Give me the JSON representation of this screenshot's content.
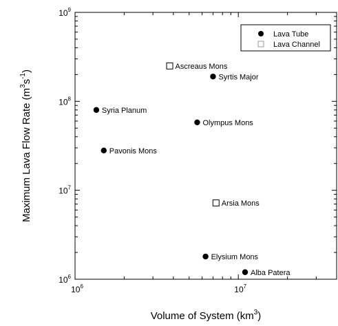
{
  "chart_data": {
    "type": "scatter",
    "title": "",
    "xlabel": {
      "text": "Volume of System (km",
      "sup": "3",
      "after": ")"
    },
    "ylabel": {
      "text": "Maximum Lava Flow Rate (m",
      "sup1": "3",
      "mid": "s",
      "sup2": "-1",
      "after": ")"
    },
    "x_scale": "log",
    "y_scale": "log",
    "xlim": [
      1000000,
      40000000
    ],
    "ylim": [
      1000000,
      1000000000
    ],
    "grid": false,
    "legend_position": "top-right",
    "x_ticks": [
      {
        "value": 1000000,
        "base": "10",
        "exp": "6"
      },
      {
        "value": 10000000,
        "base": "10",
        "exp": "7"
      }
    ],
    "y_ticks": [
      {
        "value": 1000000,
        "base": "10",
        "exp": "6"
      },
      {
        "value": 10000000,
        "base": "10",
        "exp": "7"
      },
      {
        "value": 100000000,
        "base": "10",
        "exp": "8"
      },
      {
        "value": 1000000000,
        "base": "10",
        "exp": "9"
      }
    ],
    "series": [
      {
        "name": "Lava Tube",
        "marker": "filled-circle",
        "color": "#000000",
        "points": [
          {
            "label": "Syrtis Major",
            "x": 7000000,
            "y": 190000000
          },
          {
            "label": "Syria Planum",
            "x": 1350000,
            "y": 80000000
          },
          {
            "label": "Olympus Mons",
            "x": 5600000,
            "y": 58000000
          },
          {
            "label": "Pavonis Mons",
            "x": 1500000,
            "y": 28000000
          },
          {
            "label": "Elysium Mons",
            "x": 6300000,
            "y": 1800000
          },
          {
            "label": "Alba Patera",
            "x": 11000000,
            "y": 1200000
          }
        ]
      },
      {
        "name": "Lava Channel",
        "marker": "open-square",
        "color": "#000000",
        "points": [
          {
            "label": "Ascreaus Mons",
            "x": 3800000,
            "y": 250000000
          },
          {
            "label": "Arsia Mons",
            "x": 7300000,
            "y": 7200000
          }
        ]
      }
    ]
  }
}
